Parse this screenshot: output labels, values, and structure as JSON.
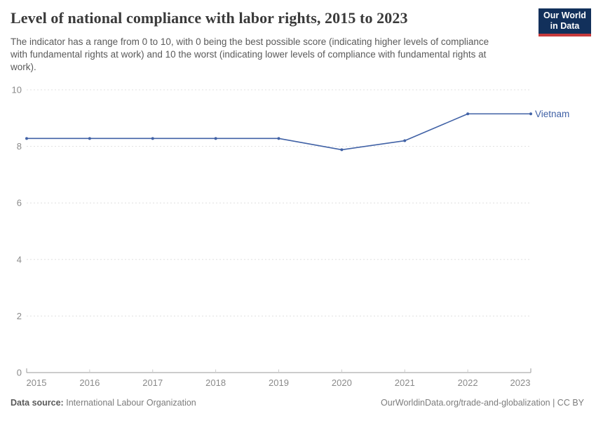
{
  "header": {
    "title": "Level of national compliance with labor rights, 2015 to 2023",
    "subtitle": "The indicator has a range from 0 to 10, with 0 being the best possible score (indicating higher levels of compliance with fundamental rights at work) and 10 the worst (indicating lower levels of compliance with fundamental rights at work).",
    "logo": {
      "line1": "Our World",
      "line2": "in Data"
    }
  },
  "chart_data": {
    "type": "line",
    "title": "Level of national compliance with labor rights, 2015 to 2023",
    "x": [
      2015,
      2016,
      2017,
      2018,
      2019,
      2020,
      2021,
      2022,
      2023
    ],
    "series": [
      {
        "name": "Vietnam",
        "values": [
          8.28,
          8.28,
          8.28,
          8.28,
          8.28,
          7.88,
          8.2,
          9.15,
          9.15
        ],
        "color": "#4162A6"
      }
    ],
    "xlabel": "",
    "ylabel": "",
    "ylim": [
      0,
      10
    ],
    "yticks": [
      0,
      2,
      4,
      6,
      8,
      10
    ],
    "grid": "horizontal-dashed",
    "legend": "end-of-line-label"
  },
  "footer": {
    "source_label": "Data source:",
    "source_value": "International Labour Organization",
    "right_text": "OurWorldinData.org/trade-and-globalization | CC BY"
  },
  "colors": {
    "series_blue": "#4162A6",
    "logo_bg": "#12305B",
    "logo_accent": "#C73A3B",
    "title_text": "#3a3a3a",
    "subtitle_text": "#5a5a5a",
    "tick_text": "#8a8a8a",
    "gridline": "#e0e0e0",
    "axis_line": "#9a9a9a"
  }
}
